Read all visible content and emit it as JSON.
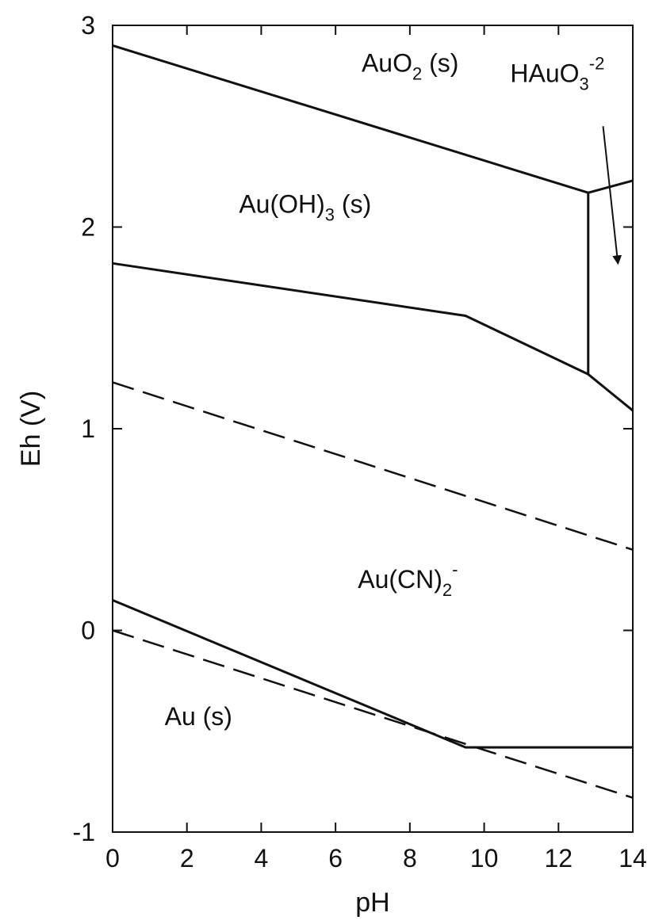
{
  "chart_data": {
    "type": "line",
    "title": "",
    "xlabel": "pH",
    "ylabel": "Eh (V)",
    "xlim": [
      0,
      14
    ],
    "ylim": [
      -1,
      3
    ],
    "grid": false,
    "x_ticks": [
      0,
      2,
      4,
      6,
      8,
      10,
      12,
      14
    ],
    "y_ticks": [
      -1,
      0,
      1,
      2,
      3
    ],
    "x_tick_labels": [
      "0",
      "2",
      "4",
      "6",
      "8",
      "10",
      "12",
      "14"
    ],
    "y_tick_labels": [
      "-1",
      "0",
      "1",
      "2",
      "3"
    ],
    "series": [
      {
        "style": "solid",
        "points": [
          [
            0,
            2.9
          ],
          [
            12.8,
            2.17
          ],
          [
            14,
            2.23
          ]
        ]
      },
      {
        "style": "solid",
        "points": [
          [
            12.8,
            2.17
          ],
          [
            12.8,
            1.27
          ]
        ]
      },
      {
        "style": "solid",
        "points": [
          [
            0,
            1.82
          ],
          [
            9.5,
            1.56
          ],
          [
            12.8,
            1.27
          ],
          [
            14,
            1.09
          ]
        ]
      },
      {
        "style": "dashed",
        "points": [
          [
            0,
            1.23
          ],
          [
            14,
            0.4
          ]
        ]
      },
      {
        "style": "solid",
        "points": [
          [
            0,
            0.15
          ],
          [
            9.5,
            -0.58
          ],
          [
            14,
            -0.58
          ]
        ]
      },
      {
        "style": "dashed",
        "points": [
          [
            0,
            0.0
          ],
          [
            14,
            -0.83
          ]
        ]
      }
    ],
    "labels": [
      {
        "text": "AuO",
        "sub": "2",
        "sup": "",
        "after": " (s)",
        "x": 6.7,
        "y": 2.77
      },
      {
        "text": "HAuO",
        "sub": "3",
        "sup": "-2",
        "after": "",
        "x": 10.7,
        "y": 2.72
      },
      {
        "text": "Au(OH)",
        "sub": "3",
        "sup": "",
        "after": " (s)",
        "x": 3.4,
        "y": 2.07
      },
      {
        "text": "Au(CN)",
        "sub": "2",
        "sup": "-",
        "after": "",
        "x": 6.6,
        "y": 0.21
      },
      {
        "text": "Au (s)",
        "sub": "",
        "sup": "",
        "after": "",
        "x": 1.4,
        "y": -0.47
      }
    ],
    "annotations": [
      {
        "type": "arrow",
        "from": [
          13.2,
          2.5
        ],
        "to": [
          13.6,
          1.82
        ]
      }
    ]
  }
}
